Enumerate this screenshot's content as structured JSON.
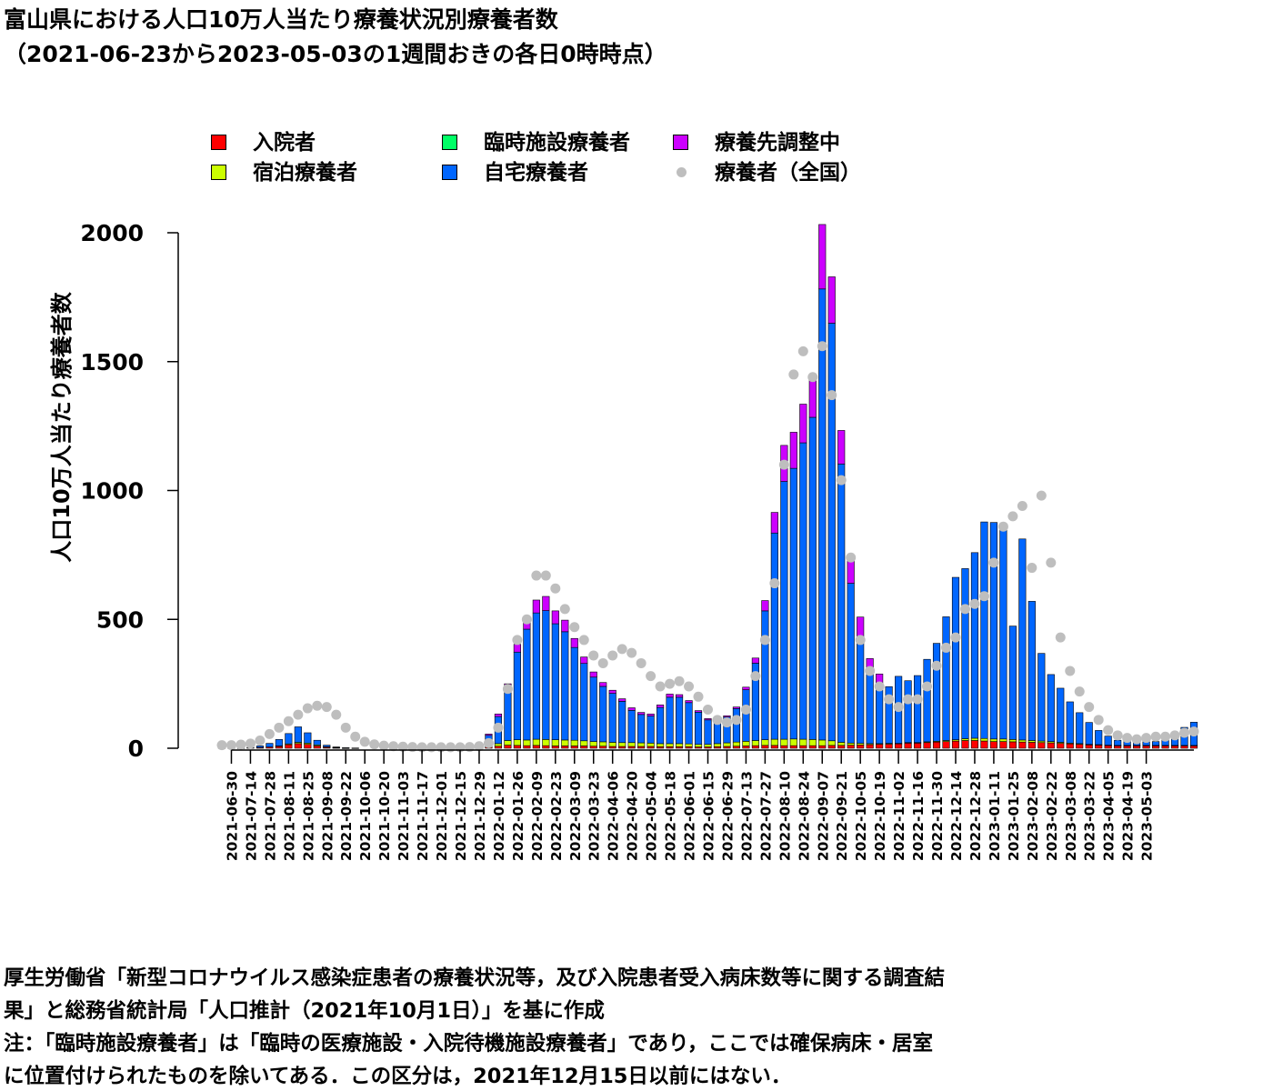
{
  "title": {
    "line1": "富山県における人口10万人当たり療養状況別療養者数",
    "line2": "（2021-06-23から2023-05-03の1週間おきの各日0時時点）"
  },
  "legend": [
    {
      "label": "入院者",
      "color": "#ff0000",
      "kind": "box"
    },
    {
      "label": "臨時施設療養者",
      "color": "#00ff66",
      "kind": "box"
    },
    {
      "label": "療養先調整中",
      "color": "#cc00ff",
      "kind": "box"
    },
    {
      "label": "宿泊療養者",
      "color": "#ccff00",
      "kind": "box"
    },
    {
      "label": "自宅療養者",
      "color": "#0066ff",
      "kind": "box"
    },
    {
      "label": "療養者（全国）",
      "color": "#bebebe",
      "kind": "dot"
    }
  ],
  "footnote": {
    "line1": "厚生労働省「新型コロナウイルス感染症患者の療養状況等，及び入院患者受入病床数等に関する調査結",
    "line2": "果」と総務省統計局「人口推計（2021年10月1日）」を基に作成",
    "line3": "注：「臨時施設療養者」は「臨時の医療施設・入院待機施設療養者」であり，ここでは確保病床・居室",
    "line4": "に位置付けられたものを除いてある．この区分は，2021年12月15日以前にはない．"
  },
  "chart_data": {
    "type": "bar",
    "stacked": true,
    "ylabel": "人口10万人当たり療養者数",
    "ylim": [
      0,
      2070
    ],
    "yticks": [
      0,
      500,
      1000,
      1500,
      2000
    ],
    "x_tick_labels": [
      "2021-06-30",
      "2021-07-14",
      "2021-07-28",
      "2021-08-11",
      "2021-08-25",
      "2021-09-08",
      "2021-09-22",
      "2021-10-06",
      "2021-10-20",
      "2021-11-03",
      "2021-11-17",
      "2021-12-01",
      "2021-12-15",
      "2021-12-29",
      "2022-01-12",
      "2022-01-26",
      "2022-02-09",
      "2022-02-23",
      "2022-03-09",
      "2022-03-23",
      "2022-04-06",
      "2022-04-20",
      "2022-05-04",
      "2022-05-18",
      "2022-06-01",
      "2022-06-15",
      "2022-06-29",
      "2022-07-13",
      "2022-07-27",
      "2022-08-10",
      "2022-08-24",
      "2022-09-07",
      "2022-09-21",
      "2022-10-05",
      "2022-10-19",
      "2022-11-02",
      "2022-11-16",
      "2022-11-30",
      "2022-12-14",
      "2022-12-28",
      "2023-01-11",
      "2023-01-25",
      "2023-02-08",
      "2023-02-22",
      "2023-03-08",
      "2023-03-22",
      "2023-04-05",
      "2023-04-19",
      "2023-05-03"
    ],
    "first_date": "2021-06-23",
    "last_date": "2023-05-03",
    "series": [
      {
        "name": "入院者",
        "color": "#ff0000",
        "values": [
          1,
          1,
          1,
          2,
          3,
          5,
          8,
          14,
          18,
          15,
          9,
          4,
          2,
          1,
          1,
          0,
          0,
          0,
          0,
          0,
          0,
          0,
          0,
          0,
          0,
          0,
          1,
          2,
          5,
          8,
          12,
          11,
          10,
          11,
          10,
          9,
          9,
          9,
          9,
          8,
          8,
          7,
          7,
          7,
          7,
          7,
          6,
          6,
          6,
          6,
          5,
          5,
          6,
          7,
          8,
          9,
          10,
          11,
          11,
          10,
          10,
          10,
          10,
          10,
          11,
          11,
          12,
          13,
          14,
          15,
          16,
          17,
          20,
          20,
          22,
          24,
          26,
          28,
          30,
          30,
          28,
          26,
          26,
          25,
          24,
          23,
          22,
          21,
          19,
          17,
          15,
          13,
          12,
          11,
          10,
          10,
          10,
          10,
          10,
          10,
          10,
          10,
          10
        ]
      },
      {
        "name": "宿泊療養者",
        "color": "#ccff00",
        "values": [
          0,
          0,
          0,
          0,
          0,
          0,
          1,
          3,
          5,
          5,
          4,
          2,
          1,
          0,
          0,
          0,
          0,
          0,
          0,
          0,
          0,
          0,
          0,
          0,
          0,
          0,
          1,
          2,
          5,
          10,
          18,
          22,
          22,
          24,
          24,
          24,
          23,
          22,
          20,
          18,
          17,
          16,
          15,
          15,
          14,
          13,
          12,
          12,
          12,
          11,
          10,
          10,
          12,
          14,
          16,
          18,
          20,
          22,
          24,
          25,
          26,
          25,
          24,
          22,
          18,
          12,
          8,
          6,
          4,
          3,
          3,
          2,
          2,
          2,
          3,
          3,
          4,
          5,
          7,
          9,
          10,
          10,
          10,
          9,
          8,
          7,
          6,
          5,
          4,
          3,
          3,
          2,
          2,
          1,
          1,
          1,
          1,
          1,
          1,
          1,
          1,
          1,
          1
        ]
      },
      {
        "name": "臨時施設療養者",
        "color": "#00ff66",
        "values": [
          0,
          0,
          0,
          0,
          0,
          0,
          0,
          0,
          0,
          0,
          0,
          0,
          0,
          0,
          0,
          0,
          0,
          0,
          0,
          0,
          0,
          0,
          0,
          0,
          0,
          0,
          0,
          0,
          0,
          0,
          0,
          0,
          0,
          0,
          0,
          0,
          0,
          0,
          0,
          0,
          0,
          0,
          0,
          0,
          0,
          0,
          0,
          0,
          0,
          0,
          0,
          0,
          0,
          0,
          0,
          0,
          0,
          0,
          0,
          0,
          0,
          0,
          0,
          0,
          0,
          0,
          0,
          0,
          0,
          0,
          0,
          0,
          0,
          0,
          0,
          0,
          0,
          0,
          0,
          0,
          0,
          0,
          0,
          0,
          0,
          0,
          0,
          0,
          0,
          0,
          0,
          0,
          0,
          0,
          0,
          0,
          0,
          0,
          0,
          0,
          0,
          0,
          0
        ]
      },
      {
        "name": "自宅療養者",
        "color": "#0066ff",
        "values": [
          0,
          0,
          0,
          2,
          6,
          14,
          25,
          40,
          60,
          40,
          18,
          6,
          2,
          1,
          0,
          0,
          0,
          0,
          0,
          0,
          0,
          0,
          0,
          0,
          0,
          0,
          3,
          12,
          40,
          105,
          200,
          340,
          430,
          490,
          500,
          450,
          420,
          360,
          300,
          250,
          215,
          190,
          160,
          125,
          110,
          105,
          140,
          180,
          180,
          160,
          125,
          95,
          85,
          100,
          130,
          200,
          300,
          500,
          800,
          1000,
          1050,
          1150,
          1250,
          1750,
          1620,
          1080,
          620,
          410,
          270,
          230,
          220,
          260,
          240,
          260,
          320,
          380,
          480,
          630,
          660,
          720,
          840,
          840,
          820,
          440,
          780,
          540,
          340,
          260,
          210,
          160,
          120,
          85,
          55,
          35,
          20,
          15,
          14,
          14,
          15,
          20,
          30,
          70,
          90
        ]
      },
      {
        "name": "療養先調整中",
        "color": "#cc00ff",
        "values": [
          0,
          0,
          0,
          0,
          0,
          0,
          0,
          0,
          0,
          0,
          0,
          0,
          0,
          0,
          0,
          0,
          0,
          0,
          0,
          0,
          0,
          0,
          0,
          0,
          0,
          0,
          0,
          2,
          5,
          10,
          20,
          30,
          40,
          50,
          55,
          50,
          45,
          35,
          25,
          20,
          15,
          12,
          10,
          10,
          8,
          8,
          10,
          12,
          10,
          8,
          6,
          5,
          5,
          5,
          6,
          10,
          20,
          40,
          80,
          140,
          140,
          150,
          160,
          250,
          180,
          130,
          100,
          80,
          60,
          40,
          0,
          0,
          0,
          0,
          0,
          0,
          0,
          0,
          0,
          0,
          0,
          0,
          0,
          0,
          0,
          0,
          0,
          0,
          0,
          0,
          0,
          0,
          0,
          0,
          0,
          0,
          0,
          0,
          0,
          0,
          0,
          0,
          0
        ]
      },
      {
        "name": "療養者（全国）",
        "color": "#bebebe",
        "kind": "dot",
        "values": [
          12,
          12,
          14,
          18,
          30,
          55,
          80,
          105,
          130,
          155,
          165,
          160,
          130,
          80,
          45,
          25,
          15,
          10,
          8,
          6,
          5,
          4,
          4,
          4,
          4,
          4,
          5,
          8,
          20,
          80,
          230,
          420,
          500,
          670,
          670,
          620,
          540,
          470,
          420,
          360,
          330,
          360,
          385,
          370,
          330,
          280,
          240,
          250,
          260,
          240,
          200,
          150,
          110,
          100,
          110,
          150,
          280,
          420,
          640,
          1100,
          1450,
          1540,
          1440,
          1560,
          1370,
          1040,
          740,
          420,
          300,
          240,
          190,
          160,
          190,
          190,
          240,
          320,
          390,
          430,
          540,
          560,
          590,
          720,
          860,
          900,
          940,
          700,
          980,
          720,
          430,
          300,
          220,
          160,
          110,
          70,
          50,
          40,
          35,
          40,
          45,
          45,
          50,
          60,
          65
        ]
      }
    ]
  }
}
